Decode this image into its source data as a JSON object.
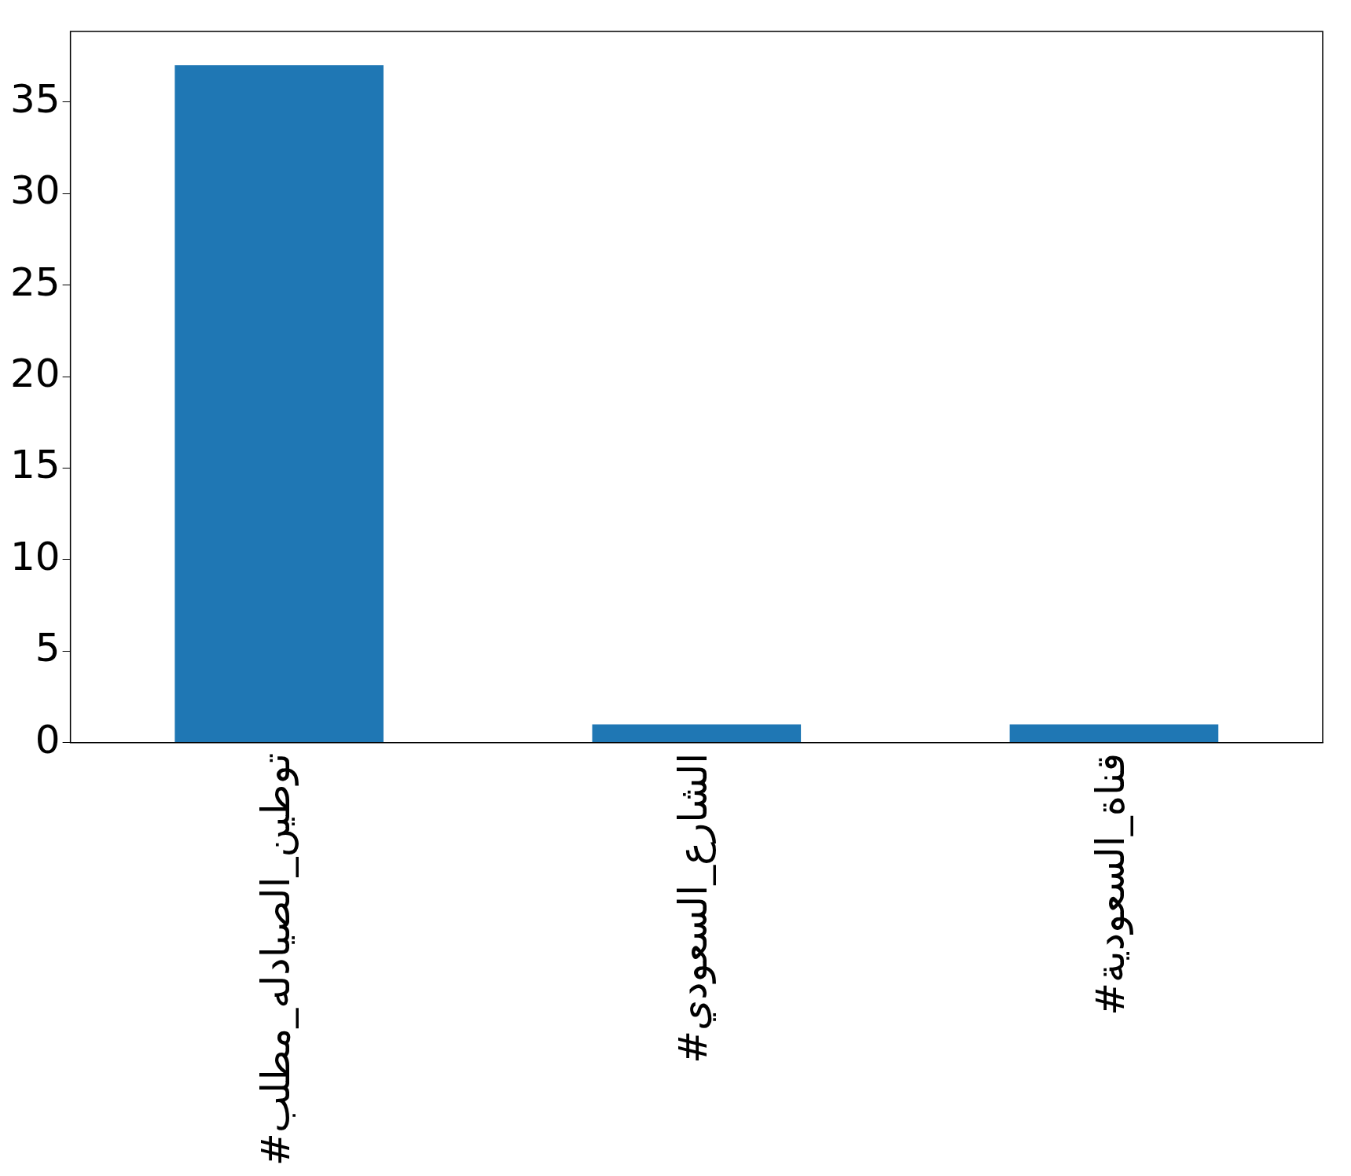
{
  "chart_data": {
    "type": "bar",
    "categories": [
      "#توطين_الصيادله_مطلب",
      "#الشارع_السعودي",
      "#قناة_السعودية"
    ],
    "values": [
      37,
      1,
      1
    ],
    "color": "#1f77b4",
    "ylim": [
      0,
      38.85
    ],
    "yticks": [
      0,
      5,
      10,
      15,
      20,
      25,
      30,
      35
    ],
    "grid": false,
    "legend": false
  }
}
